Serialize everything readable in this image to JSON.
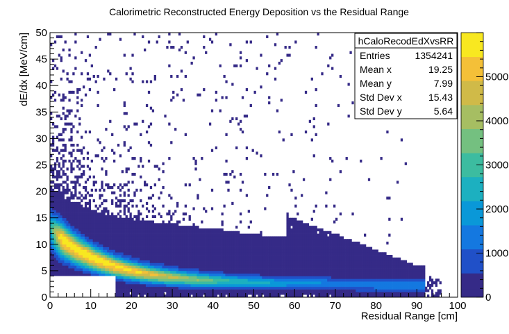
{
  "chart_data": {
    "type": "heatmap",
    "title": "Calorimetric Reconstructed Energy Deposition vs the Residual Range",
    "xlabel": "Residual Range [cm]",
    "ylabel": "dE/dx [MeV/cm]",
    "xlim": [
      0,
      100
    ],
    "ylim": [
      0,
      50
    ],
    "x_ticks": [
      0,
      10,
      20,
      30,
      40,
      50,
      60,
      70,
      80,
      90,
      100
    ],
    "y_ticks": [
      0,
      5,
      10,
      15,
      20,
      25,
      30,
      35,
      40,
      45,
      50
    ],
    "bins_x": 200,
    "bins_y": 100,
    "z_range": [
      0,
      6000
    ],
    "colorbar_ticks": [
      0,
      1000,
      2000,
      3000,
      4000,
      5000
    ],
    "colorbar_tick_labels": [
      "0",
      "1000",
      "2000",
      "3000",
      "4000",
      "5000"
    ],
    "palette": [
      "#352a87",
      "#2050c8",
      "#1478e0",
      "#0a98d8",
      "#1cb0c0",
      "#3cbca0",
      "#74c080",
      "#a6be62",
      "#d0ba48",
      "#f4c038",
      "#f8e820"
    ],
    "description_band": {
      "peak_curve": "dE/dx peak falls from about 11 MeV/cm near 0 cm to about 2 MeV/cm at 75 cm",
      "max_count_near": [
        15,
        5
      ]
    },
    "empty_region": {
      "x": [
        0,
        16
      ],
      "y": [
        0,
        4
      ]
    },
    "stats_box": {
      "name": "hCaloRecodEdXvsRR",
      "rows": [
        {
          "label": "Entries",
          "value": "1354241"
        },
        {
          "label": "Mean x",
          "value": "19.25"
        },
        {
          "label": "Mean y",
          "value": "7.99"
        },
        {
          "label": "Std Dev x",
          "value": "15.43"
        },
        {
          "label": "Std Dev y",
          "value": "5.64"
        }
      ]
    },
    "grid": false,
    "legend": "stats box top-right"
  }
}
